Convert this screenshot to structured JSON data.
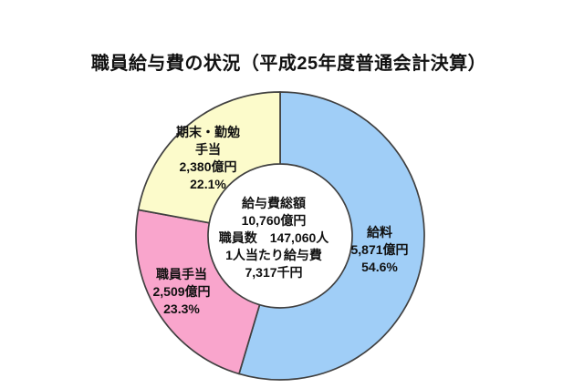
{
  "page": {
    "background": "#ffffff"
  },
  "chart_data": {
    "type": "pie",
    "subtype": "donut",
    "title": "職員給与費の状況（平成25年度普通会計決算）",
    "unit": "億円",
    "start_angle": "top",
    "direction": "clockwise",
    "outline_color": "#404040",
    "inner_fill": "#ffffff",
    "total_value_okuyen": 10760,
    "staff_count": 147060,
    "per_person_senyen": 7317,
    "center_lines": [
      "給与費総額",
      "10,760億円",
      "職員数　147,060人",
      "1人当たり給与費",
      "7,317千円"
    ],
    "segments": [
      {
        "slug": "salary",
        "name": "給料",
        "value_okuyen": 5871,
        "percent": 54.6,
        "color": "#A0CEF7",
        "label_lines": [
          "給料",
          "5,871億円",
          "54.6%"
        ]
      },
      {
        "slug": "staff-allowance",
        "name": "職員手当",
        "value_okuyen": 2509,
        "percent": 23.3,
        "color": "#F9A5CC",
        "label_lines": [
          "職員手当",
          "2,509億円",
          "23.3%"
        ]
      },
      {
        "slug": "bonus-allowance",
        "name": "期末・勤勉手当",
        "value_okuyen": 2380,
        "percent": 22.1,
        "color": "#FCFBCB",
        "label_lines": [
          "期末・勤勉",
          "手当",
          "2,380億円",
          "22.1%"
        ]
      }
    ]
  }
}
